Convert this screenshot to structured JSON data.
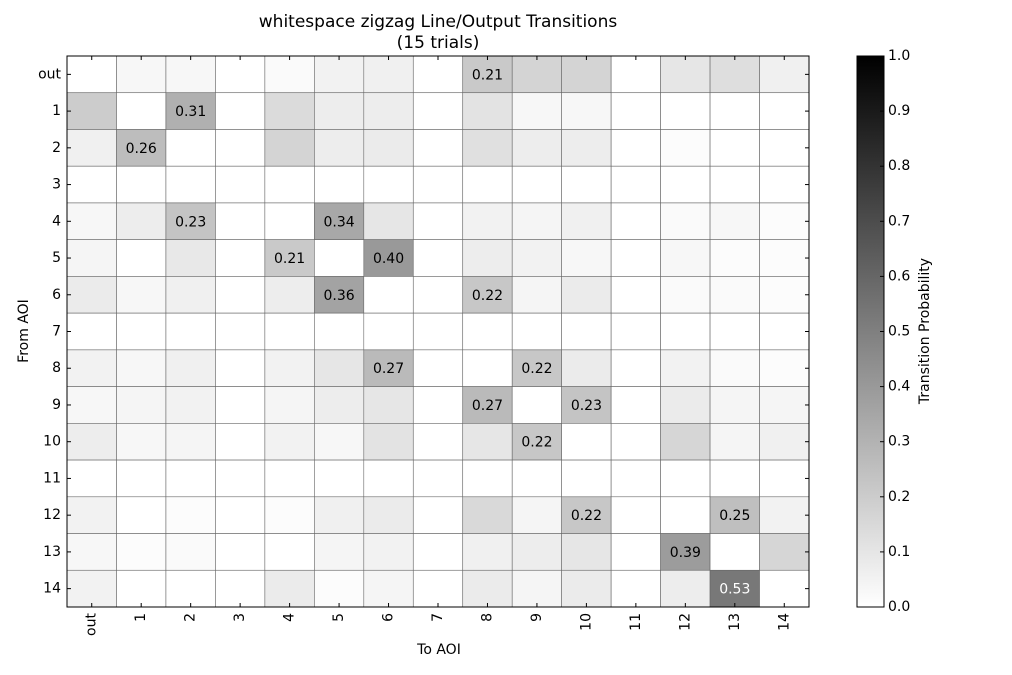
{
  "chart_data": {
    "type": "heatmap",
    "title": "whitespace zigzag Line/Output Transitions",
    "subtitle": "(15 trials)",
    "xlabel": "To AOI",
    "ylabel": "From AOI",
    "x_categories": [
      "out",
      "1",
      "2",
      "3",
      "4",
      "5",
      "6",
      "7",
      "8",
      "9",
      "10",
      "11",
      "12",
      "13",
      "14"
    ],
    "y_categories": [
      "out",
      "1",
      "2",
      "3",
      "4",
      "5",
      "6",
      "7",
      "8",
      "9",
      "10",
      "11",
      "12",
      "13",
      "14"
    ],
    "values": [
      [
        0,
        0.03,
        0.03,
        0,
        0.02,
        0.05,
        0.06,
        0,
        0.21,
        0.17,
        0.17,
        0,
        0.1,
        0.13,
        0.06
      ],
      [
        0.2,
        0,
        0.31,
        0,
        0.14,
        0.07,
        0.07,
        0,
        0.11,
        0.03,
        0.03,
        0,
        0,
        0,
        0
      ],
      [
        0.06,
        0.26,
        0,
        0,
        0.17,
        0.07,
        0.08,
        0,
        0.12,
        0.07,
        0.07,
        0,
        0.01,
        0,
        0
      ],
      [
        0,
        0,
        0,
        0,
        0,
        0,
        0,
        0,
        0,
        0,
        0,
        0,
        0,
        0,
        0
      ],
      [
        0.03,
        0.07,
        0.23,
        0,
        0,
        0.34,
        0.1,
        0,
        0.05,
        0.04,
        0.06,
        0,
        0.02,
        0.03,
        0.01
      ],
      [
        0.04,
        0,
        0.09,
        0,
        0.21,
        0,
        0.4,
        0,
        0.07,
        0.05,
        0.03,
        0,
        0.03,
        0.01,
        0.01
      ],
      [
        0.08,
        0.03,
        0.06,
        0,
        0.07,
        0.36,
        0,
        0,
        0.22,
        0.04,
        0.08,
        0,
        0.02,
        0.02,
        0.01
      ],
      [
        0,
        0,
        0,
        0,
        0,
        0,
        0,
        0,
        0,
        0,
        0,
        0,
        0,
        0,
        0
      ],
      [
        0.05,
        0.03,
        0.06,
        0,
        0.05,
        0.1,
        0.27,
        0,
        0,
        0.22,
        0.08,
        0,
        0.05,
        0.02,
        0.01
      ],
      [
        0.03,
        0.04,
        0.05,
        0,
        0.04,
        0.07,
        0.1,
        0,
        0.27,
        0,
        0.23,
        0,
        0.08,
        0.04,
        0.04
      ],
      [
        0.07,
        0.03,
        0.04,
        0,
        0.05,
        0.03,
        0.11,
        0,
        0.1,
        0.22,
        0,
        0,
        0.16,
        0.04,
        0.06
      ],
      [
        0,
        0,
        0,
        0,
        0,
        0,
        0,
        0,
        0,
        0,
        0,
        0,
        0,
        0,
        0
      ],
      [
        0.05,
        0,
        0.01,
        0,
        0.01,
        0.06,
        0.08,
        0,
        0.15,
        0.04,
        0.22,
        0,
        0,
        0.25,
        0.05
      ],
      [
        0.03,
        0.01,
        0.02,
        0,
        0,
        0.04,
        0.05,
        0,
        0.06,
        0.07,
        0.1,
        0,
        0.39,
        0,
        0.16
      ],
      [
        0.05,
        0,
        0,
        0,
        0.08,
        0.01,
        0.04,
        0,
        0.08,
        0.04,
        0.08,
        0,
        0.07,
        0.53,
        0
      ]
    ],
    "value_labels": [
      [
        null,
        null,
        null,
        null,
        null,
        null,
        null,
        null,
        "0.21",
        null,
        null,
        null,
        null,
        null,
        null
      ],
      [
        null,
        null,
        "0.31",
        null,
        null,
        null,
        null,
        null,
        null,
        null,
        null,
        null,
        null,
        null,
        null
      ],
      [
        null,
        "0.26",
        null,
        null,
        null,
        null,
        null,
        null,
        null,
        null,
        null,
        null,
        null,
        null,
        null
      ],
      [
        null,
        null,
        null,
        null,
        null,
        null,
        null,
        null,
        null,
        null,
        null,
        null,
        null,
        null,
        null
      ],
      [
        null,
        null,
        "0.23",
        null,
        null,
        "0.34",
        null,
        null,
        null,
        null,
        null,
        null,
        null,
        null,
        null
      ],
      [
        null,
        null,
        null,
        null,
        "0.21",
        null,
        "0.40",
        null,
        null,
        null,
        null,
        null,
        null,
        null,
        null
      ],
      [
        null,
        null,
        null,
        null,
        null,
        "0.36",
        null,
        null,
        "0.22",
        null,
        null,
        null,
        null,
        null,
        null
      ],
      [
        null,
        null,
        null,
        null,
        null,
        null,
        null,
        null,
        null,
        null,
        null,
        null,
        null,
        null,
        null
      ],
      [
        null,
        null,
        null,
        null,
        null,
        null,
        "0.27",
        null,
        null,
        "0.22",
        null,
        null,
        null,
        null,
        null
      ],
      [
        null,
        null,
        null,
        null,
        null,
        null,
        null,
        null,
        "0.27",
        null,
        "0.23",
        null,
        null,
        null,
        null
      ],
      [
        null,
        null,
        null,
        null,
        null,
        null,
        null,
        null,
        null,
        "0.22",
        null,
        null,
        null,
        null,
        null
      ],
      [
        null,
        null,
        null,
        null,
        null,
        null,
        null,
        null,
        null,
        null,
        null,
        null,
        null,
        null,
        null
      ],
      [
        null,
        null,
        null,
        null,
        null,
        null,
        null,
        null,
        null,
        null,
        "0.22",
        null,
        null,
        "0.25",
        null
      ],
      [
        null,
        null,
        null,
        null,
        null,
        null,
        null,
        null,
        null,
        null,
        null,
        null,
        "0.39",
        null,
        null
      ],
      [
        null,
        null,
        null,
        null,
        null,
        null,
        null,
        null,
        null,
        null,
        null,
        null,
        null,
        "0.53",
        null
      ]
    ],
    "colorbar_label": "Transition Probability",
    "clim": [
      0,
      1
    ],
    "cticks": [
      {
        "value": 0,
        "label": "0.0"
      },
      {
        "value": 0.1,
        "label": "0.1"
      },
      {
        "value": 0.2,
        "label": "0.2"
      },
      {
        "value": 0.3,
        "label": "0.3"
      },
      {
        "value": 0.4,
        "label": "0.4"
      },
      {
        "value": 0.5,
        "label": "0.5"
      },
      {
        "value": 0.6,
        "label": "0.6"
      },
      {
        "value": 0.7,
        "label": "0.7"
      },
      {
        "value": 0.8,
        "label": "0.8"
      },
      {
        "value": 0.9,
        "label": "0.9"
      },
      {
        "value": 1,
        "label": "1.0"
      }
    ],
    "colormap": "gray_r"
  }
}
